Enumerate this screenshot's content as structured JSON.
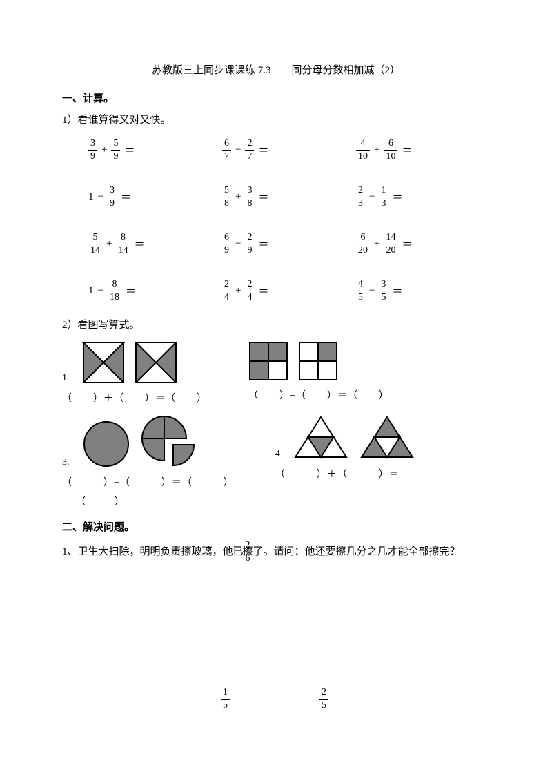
{
  "title": "苏教版三上同步课课练 7.3　　同分母分数相加减（2）",
  "sec1": "一、计算。",
  "sub1": "1）看谁算得又对又快。",
  "calc": [
    [
      {
        "a": "3",
        "b": "9",
        "op": "+",
        "c": "5",
        "d": "9"
      },
      {
        "a": "6",
        "b": "7",
        "op": "−",
        "c": "2",
        "d": "7"
      },
      {
        "a": "4",
        "b": "10",
        "op": "+",
        "c": "6",
        "d": "10"
      }
    ],
    [
      {
        "whole": "1",
        "op": "−",
        "c": "3",
        "d": "9"
      },
      {
        "a": "5",
        "b": "8",
        "op": "+",
        "c": "3",
        "d": "8"
      },
      {
        "a": "2",
        "b": "3",
        "op": "−",
        "c": "1",
        "d": "3"
      }
    ],
    [
      {
        "a": "5",
        "b": "14",
        "op": "+",
        "c": "8",
        "d": "14"
      },
      {
        "a": "6",
        "b": "9",
        "op": "−",
        "c": "2",
        "d": "9"
      },
      {
        "a": "6",
        "b": "20",
        "op": "+",
        "c": "14",
        "d": "20"
      }
    ],
    [
      {
        "whole": "1",
        "op": "−",
        "c": "8",
        "d": "18"
      },
      {
        "a": "2",
        "b": "4",
        "op": "+",
        "c": "2",
        "d": "4"
      },
      {
        "a": "4",
        "b": "5",
        "op": "−",
        "c": "3",
        "d": "5"
      }
    ]
  ],
  "sub2": "2）看图写算式。",
  "labels": {
    "l1": "1.",
    "l3": "3.",
    "l4": "4"
  },
  "eq": {
    "plus": "（　　）＋（　　）＝（　　）",
    "minus": "（　　）−（　　）＝（　　）",
    "minus2": "（　　　）−（　　　）＝（　　　）",
    "plus2": "（　　　）＋（　　　）＝",
    "cont": "（　　　）"
  },
  "sec2": "二、解决问题。",
  "word": {
    "pre": "1、卫生大扫除，明明负责擦玻璃，他已",
    "mid": "擦了",
    "fn": "2",
    "fd": "6",
    "post": "。请问：他还要擦几分之几才能全部擦完？"
  },
  "bottomFracs": [
    {
      "n": "1",
      "d": "5"
    },
    {
      "n": "2",
      "d": "5"
    }
  ],
  "gray": "#808080"
}
